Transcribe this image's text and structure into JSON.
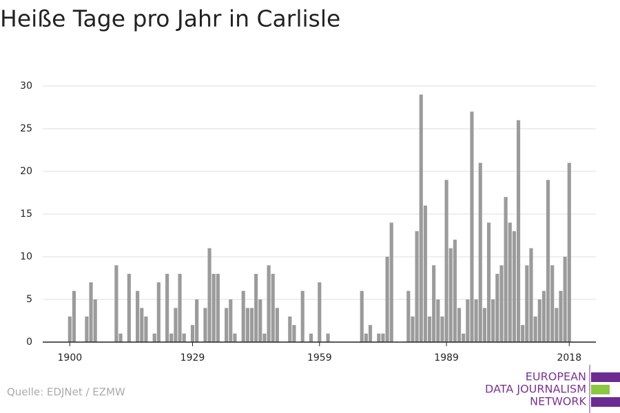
{
  "chart_data": {
    "type": "bar",
    "title": "Heiße Tage pro Jahr in Carlisle",
    "x": [
      1900,
      1901,
      1904,
      1905,
      1906,
      1911,
      1912,
      1914,
      1916,
      1917,
      1918,
      1920,
      1921,
      1923,
      1924,
      1925,
      1926,
      1927,
      1929,
      1930,
      1932,
      1933,
      1934,
      1935,
      1937,
      1938,
      1939,
      1941,
      1942,
      1943,
      1944,
      1945,
      1946,
      1947,
      1948,
      1949,
      1952,
      1953,
      1955,
      1957,
      1959,
      1961,
      1969,
      1970,
      1971,
      1973,
      1974,
      1975,
      1976,
      1980,
      1981,
      1982,
      1983,
      1984,
      1985,
      1986,
      1987,
      1988,
      1989,
      1990,
      1991,
      1992,
      1993,
      1994,
      1995,
      1996,
      1997,
      1998,
      1999,
      2000,
      2001,
      2002,
      2003,
      2004,
      2005,
      2006,
      2007,
      2008,
      2009,
      2010,
      2011,
      2012,
      2013,
      2014,
      2015,
      2016,
      2017,
      2018
    ],
    "values": [
      3,
      6,
      3,
      7,
      5,
      9,
      1,
      8,
      6,
      4,
      3,
      1,
      7,
      8,
      1,
      4,
      8,
      1,
      2,
      5,
      4,
      11,
      8,
      8,
      4,
      5,
      1,
      6,
      4,
      4,
      8,
      5,
      1,
      9,
      8,
      4,
      3,
      2,
      6,
      1,
      7,
      1,
      6,
      1,
      2,
      1,
      1,
      10,
      14,
      6,
      3,
      13,
      29,
      16,
      3,
      9,
      5,
      3,
      19,
      11,
      12,
      4,
      1,
      5,
      27,
      5,
      21,
      4,
      14,
      5,
      8,
      9,
      17,
      14,
      13,
      26,
      2,
      9,
      11,
      3,
      5,
      6,
      19,
      9,
      4,
      6,
      10,
      21
    ],
    "color": "#9b9b9b",
    "xlim": [
      1893.6,
      2024.3
    ],
    "xticks": [
      1900,
      1929,
      1959,
      1989,
      2018
    ],
    "ylim": [
      0,
      30
    ],
    "yticks": [
      0,
      5,
      10,
      15,
      20,
      25,
      30
    ],
    "grid": true
  },
  "source": "Quelle: EDJNet / EZMW",
  "logo": [
    "EUROPEAN",
    "DATA JOURNALISM",
    "NETWORK"
  ]
}
